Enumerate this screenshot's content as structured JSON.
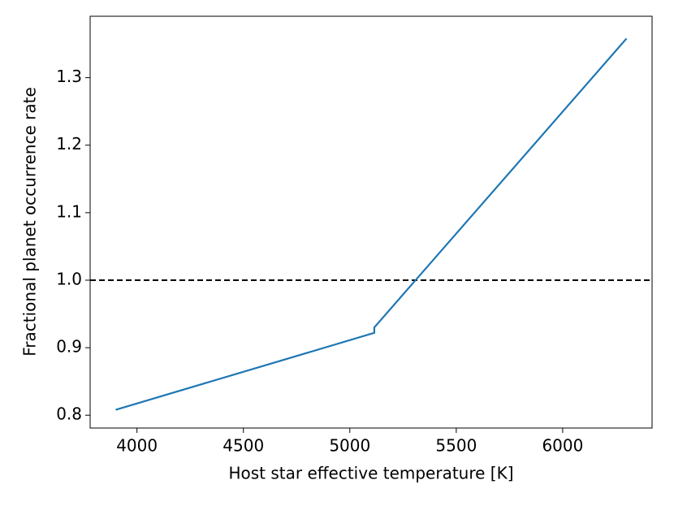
{
  "chart_data": {
    "type": "line",
    "x_label": "Host star effective temperature [K]",
    "y_label": "Fractional planet occurrence rate",
    "x": [
      3900,
      5115,
      5115,
      6300
    ],
    "series": [
      {
        "color": "#1f77b4",
        "values": [
          0.808,
          0.922,
          0.93,
          1.358
        ]
      }
    ],
    "reference_line": {
      "y": 1.0,
      "color": "#000000",
      "style": "dashed"
    },
    "xlim": [
      3780,
      6420
    ],
    "xticks": [
      4000,
      4500,
      5000,
      5500,
      6000
    ],
    "ylim": [
      0.781,
      1.391
    ],
    "yticks": [
      0.8,
      0.9,
      {
        "value": 1.0,
        "label": "1.0"
      },
      1.1,
      1.2,
      1.3
    ],
    "grid": false
  }
}
